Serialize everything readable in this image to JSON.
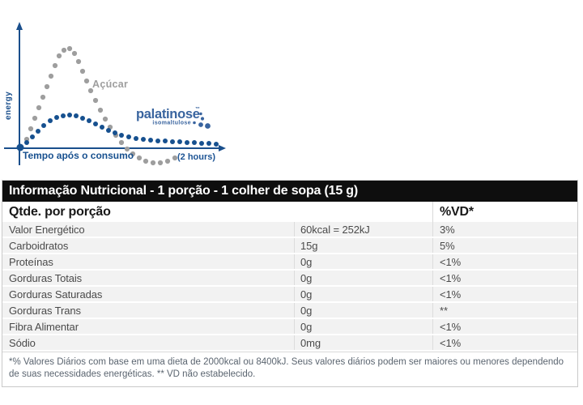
{
  "chart_data": {
    "type": "scatter",
    "style": "dotted illustrative curves, no numeric scale",
    "title": "",
    "ylabel": "energy",
    "xlabel": "Tempo após o consumo",
    "x_end_label": "(2 hours)",
    "axes_numeric": false,
    "grid": false,
    "legend_position": "inline-labels",
    "coordinate_space": "illustration pixels 290x215, y-down, x-axis baseline at y=183",
    "logo": {
      "brand": "palatinose",
      "tm": "™",
      "sub": "isomaltulose"
    },
    "origin_dot": {
      "x": 25,
      "y": 182,
      "r": 4.5
    },
    "series": [
      {
        "name": "Açúcar",
        "color": "#9e9e9e",
        "dot_radius": 3.1,
        "behavior": "sharp energy spike then crash below baseline",
        "points": [
          [
            33,
            172
          ],
          [
            38,
            159
          ],
          [
            43,
            146
          ],
          [
            48,
            133
          ],
          [
            53,
            120
          ],
          [
            58,
            107
          ],
          [
            63,
            94
          ],
          [
            68,
            81
          ],
          [
            73,
            69
          ],
          [
            79,
            62
          ],
          [
            86,
            60
          ],
          [
            92,
            66
          ],
          [
            97,
            76
          ],
          [
            102,
            88
          ],
          [
            107,
            100
          ],
          [
            112,
            112
          ],
          [
            118,
            124
          ],
          [
            124,
            136
          ],
          [
            130,
            147
          ],
          [
            136,
            157
          ],
          [
            143,
            167
          ],
          [
            150,
            176
          ],
          [
            157,
            184
          ],
          [
            164,
            190
          ],
          [
            172,
            195
          ],
          [
            180,
            199
          ],
          [
            189,
            201
          ],
          [
            198,
            201
          ],
          [
            207,
            199
          ],
          [
            216,
            195
          ]
        ]
      },
      {
        "name": "palatinose isomaltulose",
        "color": "#16508f",
        "dot_radius": 3.0,
        "behavior": "moderate rise, sustained energy over 2 hours",
        "points": [
          [
            33,
            176
          ],
          [
            40,
            169
          ],
          [
            47,
            162
          ],
          [
            54,
            155
          ],
          [
            62,
            149
          ],
          [
            70,
            145
          ],
          [
            78,
            143
          ],
          [
            86,
            142
          ],
          [
            94,
            143
          ],
          [
            102,
            146
          ],
          [
            110,
            149
          ],
          [
            118,
            153
          ],
          [
            126,
            157
          ],
          [
            134,
            161
          ],
          [
            142,
            164
          ],
          [
            150,
            167
          ],
          [
            159,
            169
          ],
          [
            168,
            171
          ],
          [
            177,
            172
          ],
          [
            186,
            173
          ],
          [
            195,
            174
          ],
          [
            204,
            174
          ],
          [
            213,
            175
          ],
          [
            222,
            175
          ],
          [
            231,
            176
          ],
          [
            240,
            176
          ],
          [
            249,
            177
          ],
          [
            258,
            177
          ],
          [
            267,
            178
          ]
        ]
      }
    ]
  },
  "table": {
    "title": "Informação Nutricional - 1 porção - 1 colher de sopa (15 g)",
    "col_qty_header": "Qtde. por porção",
    "col_vd_header": "%VD*",
    "rows": [
      {
        "name": "Valor Energético",
        "qty": "60kcal = 252kJ",
        "vd": "3%"
      },
      {
        "name": "Carboidratos",
        "qty": "15g",
        "vd": "5%"
      },
      {
        "name": "Proteínas",
        "qty": "0g",
        "vd": "<1%"
      },
      {
        "name": "Gorduras Totais",
        "qty": "0g",
        "vd": "<1%"
      },
      {
        "name": "Gorduras Saturadas",
        "qty": "0g",
        "vd": "<1%"
      },
      {
        "name": "Gorduras Trans",
        "qty": "0g",
        "vd": "**"
      },
      {
        "name": "Fibra Alimentar",
        "qty": "0g",
        "vd": "<1%"
      },
      {
        "name": "Sódio",
        "qty": "0mg",
        "vd": "<1%"
      }
    ],
    "footnote": "*% Valores Diários com base em uma dieta de 2000kcal ou 8400kJ. Seus valores diários podem ser maiores ou menores dependendo de suas necessidades energéticas. ** VD não estabelecido."
  }
}
